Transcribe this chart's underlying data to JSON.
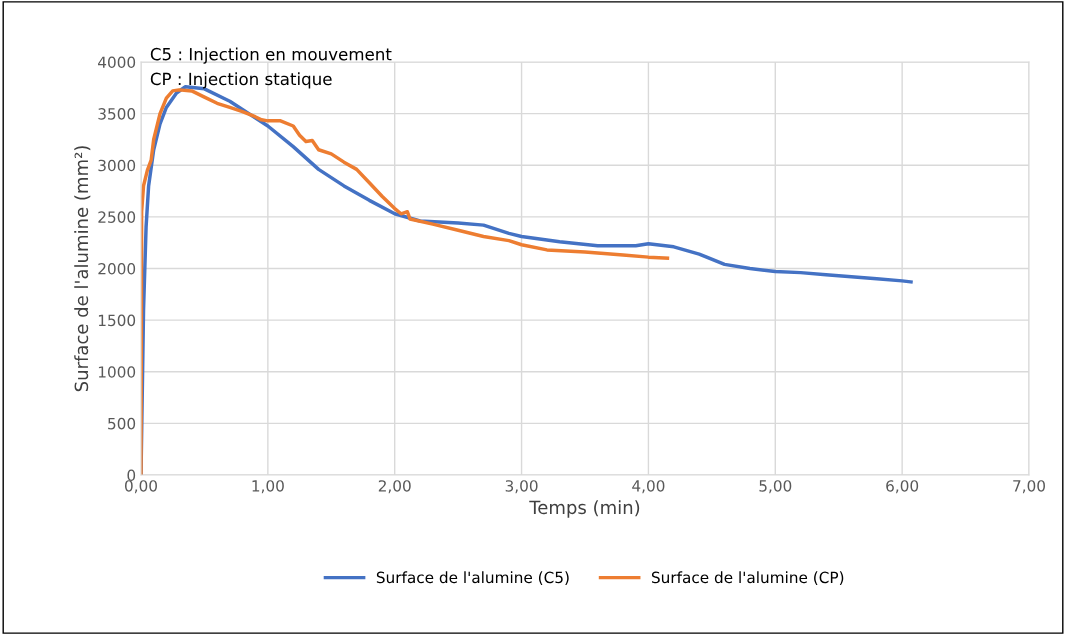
{
  "chart_data": {
    "type": "line",
    "xlabel": "Temps (min)",
    "ylabel": "Surface de l'alumine (mm²)",
    "annotations": [
      "C5 : Injection en mouvement",
      "CP : Injection statique"
    ],
    "xlim": [
      0,
      7
    ],
    "ylim": [
      0,
      4000
    ],
    "xticks": [
      {
        "value": 0,
        "label": "0,00"
      },
      {
        "value": 1,
        "label": "1,00"
      },
      {
        "value": 2,
        "label": "2,00"
      },
      {
        "value": 3,
        "label": "3,00"
      },
      {
        "value": 4,
        "label": "4,00"
      },
      {
        "value": 5,
        "label": "5,00"
      },
      {
        "value": 6,
        "label": "6,00"
      },
      {
        "value": 7,
        "label": "7,00"
      }
    ],
    "yticks": [
      0,
      500,
      1000,
      1500,
      2000,
      2500,
      3000,
      3500,
      4000
    ],
    "grid": true,
    "legend": "bottom",
    "marker": "none",
    "line_style": "solid",
    "series": [
      {
        "name": "Surface de l'alumine (C5)",
        "color": "#4472c4",
        "x": [
          0,
          0.01,
          0.02,
          0.04,
          0.06,
          0.1,
          0.15,
          0.2,
          0.28,
          0.35,
          0.5,
          0.7,
          0.9,
          1.0,
          1.2,
          1.4,
          1.6,
          1.8,
          2.0,
          2.2,
          2.5,
          2.7,
          2.9,
          3.0,
          3.3,
          3.6,
          3.9,
          4.0,
          4.2,
          4.4,
          4.6,
          4.8,
          5.0,
          5.2,
          5.4,
          5.6,
          5.8,
          6.0,
          6.07
        ],
        "values": [
          0,
          800,
          1600,
          2400,
          2800,
          3150,
          3400,
          3560,
          3700,
          3760,
          3740,
          3620,
          3460,
          3380,
          3180,
          2960,
          2800,
          2660,
          2530,
          2460,
          2440,
          2420,
          2340,
          2310,
          2260,
          2220,
          2220,
          2240,
          2210,
          2140,
          2040,
          2000,
          1970,
          1960,
          1940,
          1920,
          1900,
          1880,
          1870
        ]
      },
      {
        "name": "Surface de l'alumine (CP)",
        "color": "#ed7d31",
        "x": [
          0,
          0.005,
          0.02,
          0.05,
          0.08,
          0.1,
          0.15,
          0.2,
          0.25,
          0.3,
          0.4,
          0.5,
          0.6,
          0.7,
          0.8,
          0.9,
          0.95,
          1.0,
          1.1,
          1.2,
          1.25,
          1.3,
          1.35,
          1.4,
          1.5,
          1.6,
          1.7,
          1.8,
          1.9,
          2.0,
          2.05,
          2.1,
          2.12,
          2.3,
          2.5,
          2.7,
          2.9,
          3.0,
          3.2,
          3.5,
          3.8,
          4.0,
          4.15
        ],
        "values": [
          0,
          2550,
          2800,
          2950,
          3050,
          3250,
          3500,
          3650,
          3720,
          3730,
          3720,
          3660,
          3600,
          3560,
          3520,
          3470,
          3440,
          3430,
          3430,
          3380,
          3290,
          3230,
          3240,
          3150,
          3110,
          3030,
          2960,
          2830,
          2700,
          2580,
          2530,
          2550,
          2480,
          2430,
          2370,
          2310,
          2270,
          2230,
          2180,
          2160,
          2130,
          2110,
          2100
        ]
      }
    ]
  }
}
